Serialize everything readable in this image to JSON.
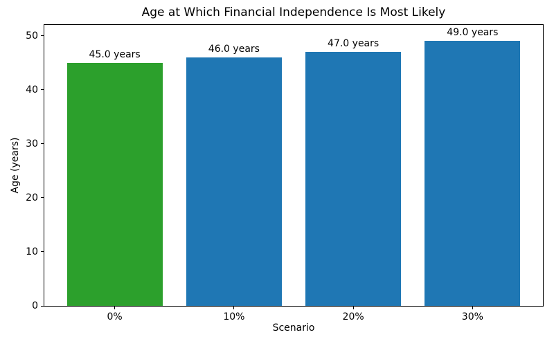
{
  "chart_data": {
    "type": "bar",
    "title": "Age at Which Financial Independence Is Most Likely",
    "xlabel": "Scenario",
    "ylabel": "Age (years)",
    "categories": [
      "0%",
      "10%",
      "20%",
      "30%"
    ],
    "values": [
      45.0,
      46.0,
      47.0,
      49.0
    ],
    "bar_labels": [
      "45.0 years",
      "46.0 years",
      "47.0 years",
      "49.0 years"
    ],
    "bar_colors": [
      "#2ca02c",
      "#1f77b4",
      "#1f77b4",
      "#1f77b4"
    ],
    "yticks": [
      0,
      10,
      20,
      30,
      40,
      50
    ],
    "ylim": [
      0,
      52
    ],
    "bar_width_fraction": 0.8,
    "grid": false,
    "legend_position": "none",
    "background_color": "#ffffff",
    "text_color": "#000000"
  }
}
